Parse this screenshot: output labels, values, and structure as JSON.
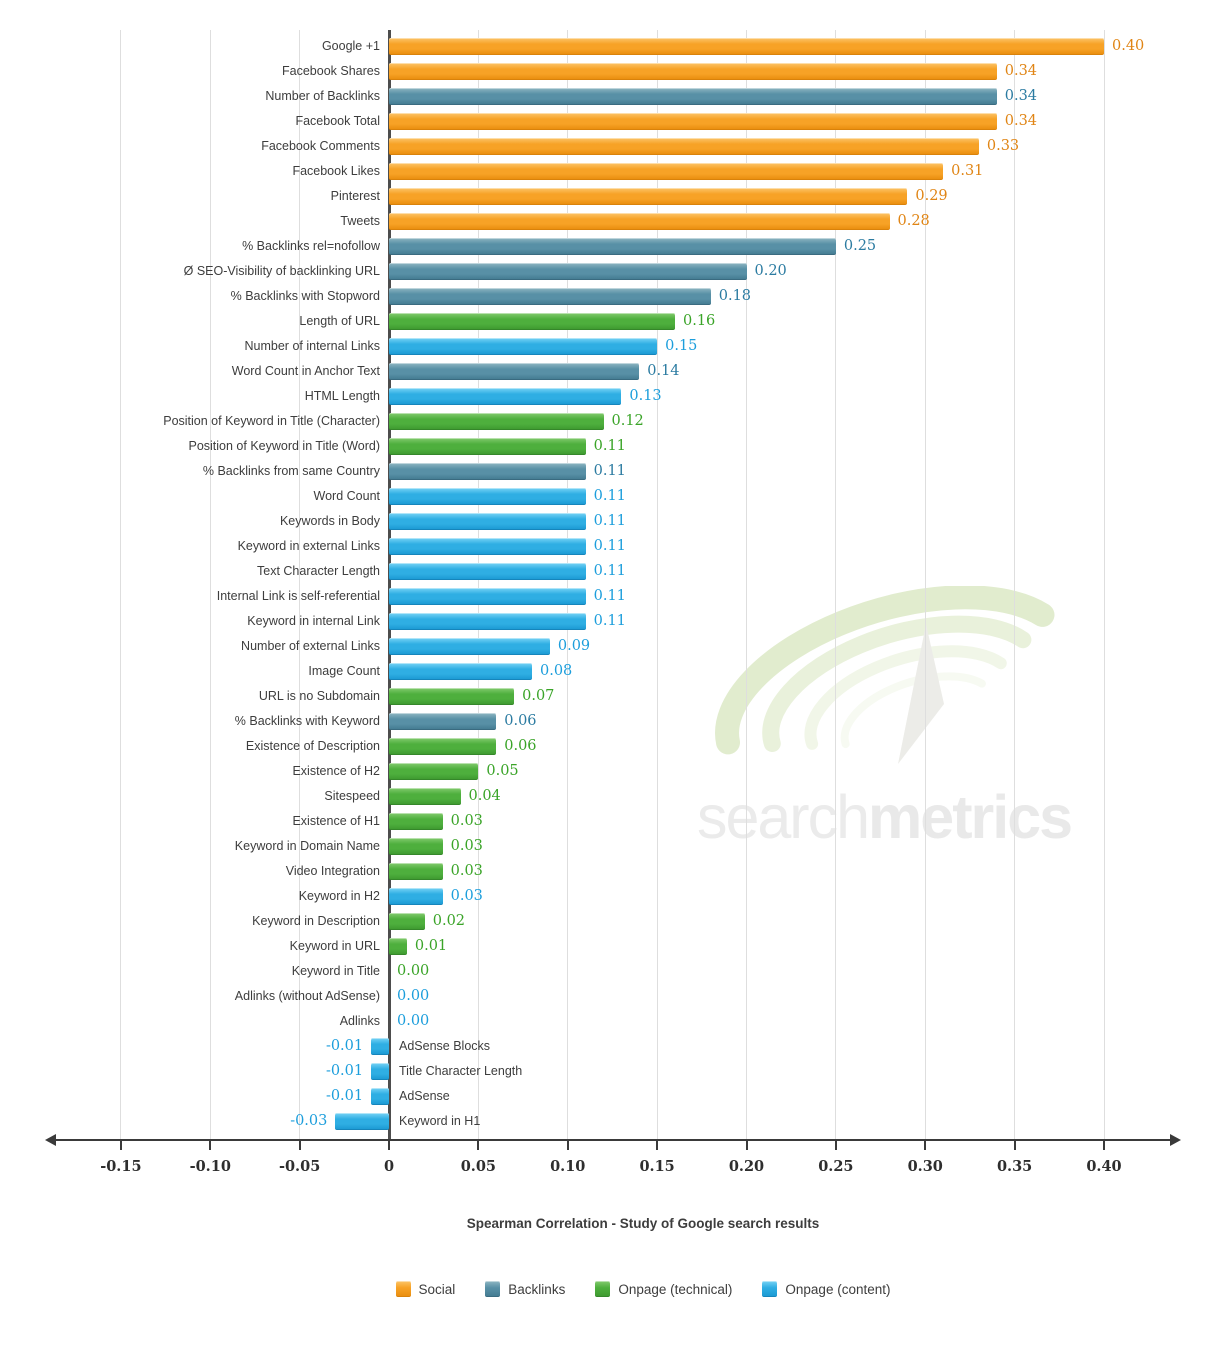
{
  "chart_data": {
    "type": "bar",
    "orientation": "horizontal",
    "title": "Spearman Correlation - Study of Google search results",
    "grid": true,
    "legend_position": "bottom",
    "axis": {
      "min": -0.15,
      "max": 0.4,
      "ticks": [
        {
          "value": -0.15,
          "label": "-0.15"
        },
        {
          "value": -0.1,
          "label": "-0.10"
        },
        {
          "value": -0.05,
          "label": "-0.05"
        },
        {
          "value": 0,
          "label": "0"
        },
        {
          "value": 0.05,
          "label": "0.05"
        },
        {
          "value": 0.1,
          "label": "0.10"
        },
        {
          "value": 0.15,
          "label": "0.15"
        },
        {
          "value": 0.2,
          "label": "0.20"
        },
        {
          "value": 0.25,
          "label": "0.25"
        },
        {
          "value": 0.3,
          "label": "0.30"
        },
        {
          "value": 0.35,
          "label": "0.35"
        },
        {
          "value": 0.4,
          "label": "0.40"
        }
      ]
    },
    "rows": [
      {
        "category": "Google +1",
        "value": 0.4,
        "label": "0.40",
        "group": "social"
      },
      {
        "category": "Facebook Shares",
        "value": 0.34,
        "label": "0.34",
        "group": "social"
      },
      {
        "category": "Number of Backlinks",
        "value": 0.34,
        "label": "0.34",
        "group": "backlinks"
      },
      {
        "category": "Facebook Total",
        "value": 0.34,
        "label": "0.34",
        "group": "social"
      },
      {
        "category": "Facebook Comments",
        "value": 0.33,
        "label": "0.33",
        "group": "social"
      },
      {
        "category": "Facebook Likes",
        "value": 0.31,
        "label": "0.31",
        "group": "social"
      },
      {
        "category": "Pinterest",
        "value": 0.29,
        "label": "0.29",
        "group": "social"
      },
      {
        "category": "Tweets",
        "value": 0.28,
        "label": "0.28",
        "group": "social"
      },
      {
        "category": "% Backlinks rel=nofollow",
        "value": 0.25,
        "label": "0.25",
        "group": "backlinks"
      },
      {
        "category": "Ø SEO-Visibility of backlinking URL",
        "value": 0.2,
        "label": "0.20",
        "group": "backlinks"
      },
      {
        "category": "% Backlinks with Stopword",
        "value": 0.18,
        "label": "0.18",
        "group": "backlinks"
      },
      {
        "category": "Length of URL",
        "value": 0.16,
        "label": "0.16",
        "group": "onpage_technical"
      },
      {
        "category": "Number of internal Links",
        "value": 0.15,
        "label": "0.15",
        "group": "onpage_content"
      },
      {
        "category": "Word Count in Anchor Text",
        "value": 0.14,
        "label": "0.14",
        "group": "backlinks"
      },
      {
        "category": "HTML Length",
        "value": 0.13,
        "label": "0.13",
        "group": "onpage_content"
      },
      {
        "category": "Position of Keyword in Title (Character)",
        "value": 0.12,
        "label": "0.12",
        "group": "onpage_technical"
      },
      {
        "category": "Position of Keyword in Title (Word)",
        "value": 0.11,
        "label": "0.11",
        "group": "onpage_technical"
      },
      {
        "category": "% Backlinks from same Country",
        "value": 0.11,
        "label": "0.11",
        "group": "backlinks"
      },
      {
        "category": "Word Count",
        "value": 0.11,
        "label": "0.11",
        "group": "onpage_content"
      },
      {
        "category": "Keywords in Body",
        "value": 0.11,
        "label": "0.11",
        "group": "onpage_content"
      },
      {
        "category": "Keyword in external Links",
        "value": 0.11,
        "label": "0.11",
        "group": "onpage_content"
      },
      {
        "category": "Text Character Length",
        "value": 0.11,
        "label": "0.11",
        "group": "onpage_content"
      },
      {
        "category": "Internal Link is self-referential",
        "value": 0.11,
        "label": "0.11",
        "group": "onpage_content"
      },
      {
        "category": "Keyword in internal Link",
        "value": 0.11,
        "label": "0.11",
        "group": "onpage_content"
      },
      {
        "category": "Number of external Links",
        "value": 0.09,
        "label": "0.09",
        "group": "onpage_content"
      },
      {
        "category": "Image Count",
        "value": 0.08,
        "label": "0.08",
        "group": "onpage_content"
      },
      {
        "category": "URL is no Subdomain",
        "value": 0.07,
        "label": "0.07",
        "group": "onpage_technical"
      },
      {
        "category": "% Backlinks with Keyword",
        "value": 0.06,
        "label": "0.06",
        "group": "backlinks"
      },
      {
        "category": "Existence of Description",
        "value": 0.06,
        "label": "0.06",
        "group": "onpage_technical"
      },
      {
        "category": "Existence of H2",
        "value": 0.05,
        "label": "0.05",
        "group": "onpage_technical"
      },
      {
        "category": "Sitespeed",
        "value": 0.04,
        "label": "0.04",
        "group": "onpage_technical"
      },
      {
        "category": "Existence of H1",
        "value": 0.03,
        "label": "0.03",
        "group": "onpage_technical"
      },
      {
        "category": "Keyword in Domain Name",
        "value": 0.03,
        "label": "0.03",
        "group": "onpage_technical"
      },
      {
        "category": "Video Integration",
        "value": 0.03,
        "label": "0.03",
        "group": "onpage_technical"
      },
      {
        "category": "Keyword in H2",
        "value": 0.03,
        "label": "0.03",
        "group": "onpage_content"
      },
      {
        "category": "Keyword in Description",
        "value": 0.02,
        "label": "0.02",
        "group": "onpage_technical"
      },
      {
        "category": "Keyword in URL",
        "value": 0.01,
        "label": "0.01",
        "group": "onpage_technical"
      },
      {
        "category": "Keyword in Title",
        "value": 0.0,
        "label": "0.00",
        "group": "onpage_technical"
      },
      {
        "category": "Adlinks (without AdSense)",
        "value": 0.0,
        "label": "0.00",
        "group": "onpage_content"
      },
      {
        "category": "Adlinks",
        "value": 0.0,
        "label": "0.00",
        "group": "onpage_content"
      },
      {
        "category": "AdSense Blocks",
        "value": -0.01,
        "label": "-0.01",
        "group": "onpage_content"
      },
      {
        "category": "Title Character Length",
        "value": -0.01,
        "label": "-0.01",
        "group": "onpage_content"
      },
      {
        "category": "AdSense",
        "value": -0.01,
        "label": "-0.01",
        "group": "onpage_content"
      },
      {
        "category": "Keyword in H1",
        "value": -0.03,
        "label": "-0.03",
        "group": "onpage_content"
      }
    ],
    "legend": [
      {
        "group": "social",
        "label": "Social"
      },
      {
        "group": "backlinks",
        "label": "Backlinks"
      },
      {
        "group": "onpage_technical",
        "label": "Onpage (technical)"
      },
      {
        "group": "onpage_content",
        "label": "Onpage (content)"
      }
    ],
    "colors": {
      "social": {
        "top": "#FCC569",
        "mid": "#F7A226",
        "bottom": "#EA8F10",
        "border": "#D9820B",
        "text": "#E08515"
      },
      "backlinks": {
        "top": "#8FB6C2",
        "mid": "#5890A6",
        "bottom": "#457D93",
        "border": "#3A6B80",
        "text": "#2B7BA1"
      },
      "onpage_technical": {
        "top": "#83CB6E",
        "mid": "#4EAF3D",
        "bottom": "#3F9B31",
        "border": "#35872A",
        "text": "#3AA428"
      },
      "onpage_content": {
        "top": "#77D3F5",
        "mid": "#2FAEE3",
        "bottom": "#1D9BD4",
        "border": "#1685BB",
        "text": "#1C9EDC"
      }
    },
    "watermark": {
      "light": "search",
      "bold": "metrics"
    }
  }
}
